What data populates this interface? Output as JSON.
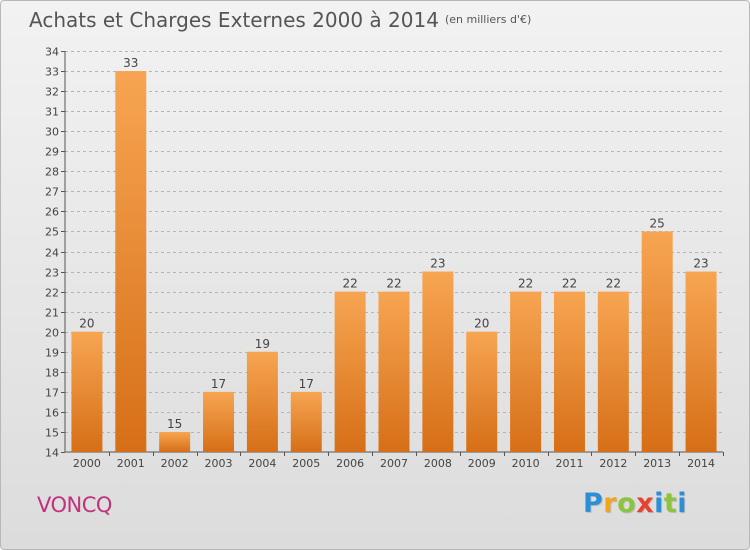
{
  "title": "Achats et Charges Externes 2000 à 2014",
  "subtitle": "(en milliers d'€)",
  "commune": "VONCQ",
  "logo": {
    "letters": [
      "P",
      "r",
      "o",
      "x",
      "i",
      "t",
      "i"
    ],
    "colors": [
      "#2b8fd6",
      "#f0a51b",
      "#8cc43f",
      "#e8412c",
      "#2b8fd6",
      "#8cc43f",
      "#2b8fd6"
    ]
  },
  "colors": {
    "bar_top": "#f7a552",
    "bar_bottom": "#d66f17",
    "accent_commune": "#c2317e"
  },
  "chart_data": {
    "type": "bar",
    "categories": [
      "2000",
      "2001",
      "2002",
      "2003",
      "2004",
      "2005",
      "2006",
      "2007",
      "2008",
      "2009",
      "2010",
      "2011",
      "2012",
      "2013",
      "2014"
    ],
    "values": [
      20,
      33,
      15,
      17,
      19,
      17,
      22,
      22,
      23,
      20,
      22,
      22,
      22,
      25,
      23
    ],
    "ylim": [
      14,
      34
    ],
    "yticks": [
      14,
      15,
      16,
      17,
      18,
      19,
      20,
      21,
      22,
      23,
      24,
      25,
      26,
      27,
      28,
      29,
      30,
      31,
      32,
      33,
      34
    ],
    "grid": "horizontal dashed",
    "xlabel": "",
    "ylabel": ""
  }
}
